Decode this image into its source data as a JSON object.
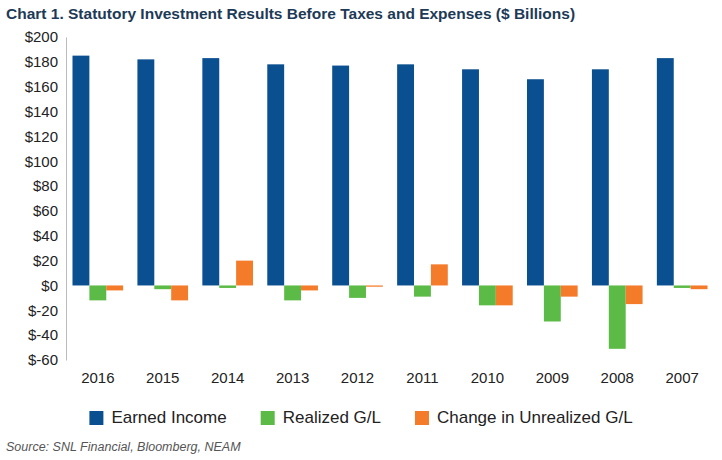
{
  "chart_data": {
    "type": "bar",
    "title": "Chart 1. Statutory Investment Results Before Taxes and Expenses ($ Billions)",
    "source": "Source: SNL Financial, Bloomberg, NEAM",
    "categories": [
      "2016",
      "2015",
      "2014",
      "2013",
      "2012",
      "2011",
      "2010",
      "2009",
      "2008",
      "2007"
    ],
    "series": [
      {
        "name": "Earned Income",
        "color": "#0a4f8f",
        "values": [
          185,
          182,
          183,
          178,
          177,
          178,
          174,
          166,
          174,
          183
        ]
      },
      {
        "name": "Realized G/L",
        "color": "#5cbb46",
        "values": [
          -12,
          -3,
          -2,
          -12,
          -10,
          -9,
          -16,
          -29,
          -51,
          -2
        ]
      },
      {
        "name": "Change in Unrealized G/L",
        "color": "#f47b2a",
        "values": [
          -4,
          -12,
          20,
          -4,
          -1,
          17,
          -16,
          -9,
          -15,
          -3
        ]
      }
    ],
    "ylim": [
      -60,
      200
    ],
    "yticks": [
      {
        "value": -60,
        "label": "$-60"
      },
      {
        "value": -40,
        "label": "$-40"
      },
      {
        "value": -20,
        "label": "$-20"
      },
      {
        "value": 0,
        "label": "$0"
      },
      {
        "value": 20,
        "label": "$20"
      },
      {
        "value": 40,
        "label": "$40"
      },
      {
        "value": 60,
        "label": "$60"
      },
      {
        "value": 80,
        "label": "$80"
      },
      {
        "value": 100,
        "label": "$100"
      },
      {
        "value": 120,
        "label": "$120"
      },
      {
        "value": 140,
        "label": "$140"
      },
      {
        "value": 160,
        "label": "$160"
      },
      {
        "value": 180,
        "label": "$180"
      },
      {
        "value": 200,
        "label": "$200"
      }
    ],
    "grid": false,
    "legend": "bottom"
  }
}
